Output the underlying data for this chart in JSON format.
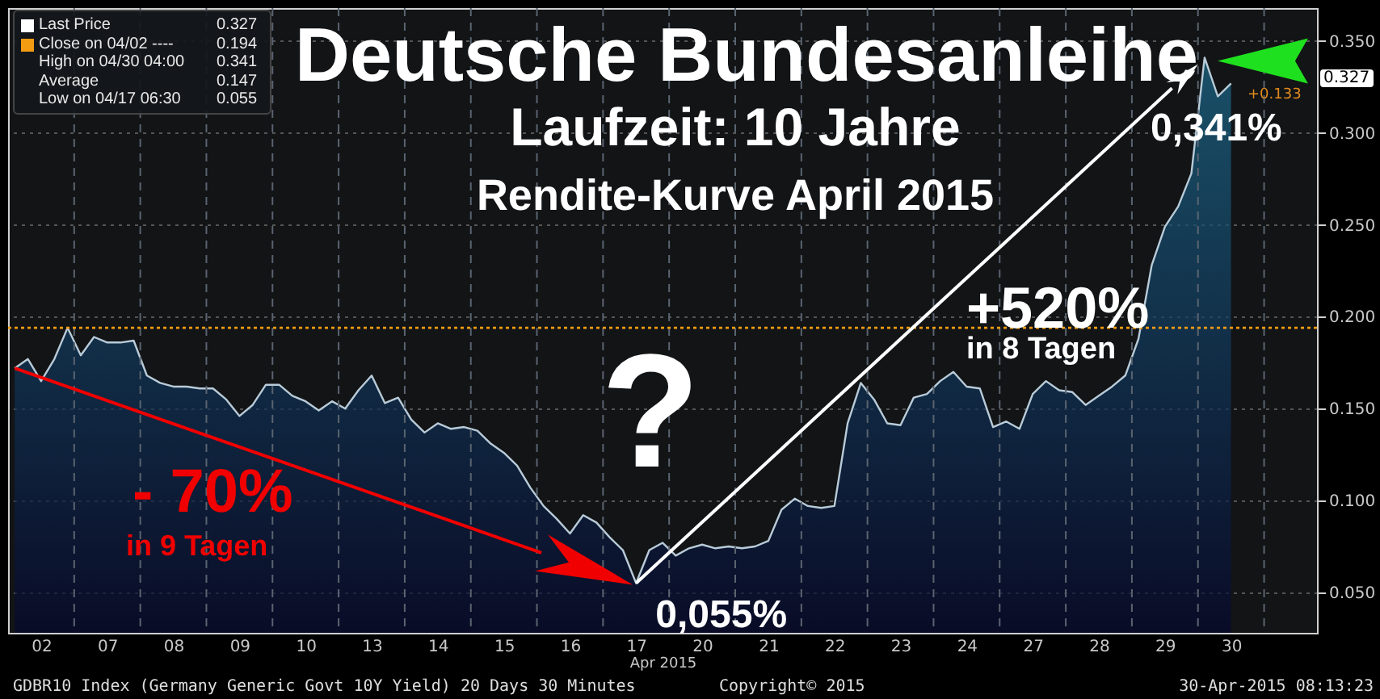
{
  "chart_data": {
    "type": "area",
    "title": "Deutsche Bundesanleihe",
    "subtitle": "Laufzeit: 10 Jahre",
    "xlabel": "Apr 2015",
    "categories": [
      null,
      null,
      "02",
      null,
      null,
      null,
      null,
      "07",
      null,
      null,
      null,
      null,
      "08",
      null,
      null,
      null,
      null,
      "09",
      null,
      null,
      null,
      null,
      "10",
      null,
      null,
      null,
      null,
      "13",
      null,
      null,
      null,
      null,
      "14",
      null,
      null,
      null,
      null,
      "15",
      null,
      null,
      null,
      null,
      "16",
      null,
      null,
      null,
      null,
      "17",
      null,
      null,
      null,
      null,
      "20",
      null,
      null,
      null,
      null,
      "21",
      null,
      null,
      null,
      null,
      "22",
      null,
      null,
      null,
      null,
      "23",
      null,
      null,
      null,
      null,
      "24",
      null,
      null,
      null,
      null,
      "27",
      null,
      null,
      null,
      null,
      "28",
      null,
      null,
      null,
      null,
      "29",
      null,
      null,
      null,
      null,
      "30",
      null,
      null,
      null,
      null,
      null,
      null
    ],
    "series": [
      {
        "color": "#1d6b8c",
        "values": [
          0.172,
          0.177,
          0.165,
          0.177,
          0.194,
          0.179,
          0.189,
          0.186,
          0.186,
          0.187,
          0.168,
          0.164,
          0.162,
          0.162,
          0.161,
          0.161,
          0.155,
          0.146,
          0.152,
          0.163,
          0.163,
          0.157,
          0.154,
          0.149,
          0.154,
          0.15,
          0.16,
          0.168,
          0.153,
          0.156,
          0.144,
          0.137,
          0.142,
          0.139,
          0.14,
          0.138,
          0.131,
          0.126,
          0.119,
          0.107,
          0.097,
          0.09,
          0.082,
          0.092,
          0.088,
          0.08,
          0.073,
          0.055,
          0.073,
          0.077,
          0.07,
          0.074,
          0.076,
          0.074,
          0.075,
          0.074,
          0.075,
          0.078,
          0.095,
          0.101,
          0.097,
          0.096,
          0.097,
          0.142,
          0.164,
          0.155,
          0.142,
          0.141,
          0.156,
          0.158,
          0.165,
          0.17,
          0.162,
          0.161,
          0.14,
          0.143,
          0.139,
          0.158,
          0.165,
          0.16,
          0.159,
          0.152,
          0.157,
          0.162,
          0.168,
          0.188,
          0.228,
          0.249,
          0.26,
          0.278,
          0.341,
          0.32,
          0.327,
          null,
          null,
          null,
          null,
          null,
          null
        ]
      }
    ],
    "ylim": [
      0.028,
      0.368
    ],
    "yticks": [
      {
        "value": 0.05,
        "label": "0.050"
      },
      {
        "value": 0.1,
        "label": "0.100"
      },
      {
        "value": 0.15,
        "label": "0.150"
      },
      {
        "value": 0.2,
        "label": "0.200"
      },
      {
        "value": 0.25,
        "label": "0.250"
      },
      {
        "value": 0.3,
        "label": "0.300"
      },
      {
        "value": 0.35,
        "label": "0.350"
      }
    ],
    "grid": true,
    "ref_lines": [
      {
        "axis": "y",
        "value": 0.194,
        "color": "#f39c12",
        "line_style": "dotted"
      }
    ],
    "annotations": [
      "Last Price",
      "0.327",
      "Close on 04/02 ----",
      "0.194",
      "High on 04/30 04:00",
      "0.341",
      "Average",
      "0.147",
      "Low on 04/17 06:30",
      "0.055",
      "Rendite-Kurve April 2015",
      "?",
      "- 70%",
      "in 9 Tagen",
      "+520%",
      "in 8 Tagen",
      "GDBR10 Index (Germany Generic Govt 10Y Yield) 20 Days 30 Minutes",
      "Copyright© 2015",
      "30-Apr-2015 08:13:23",
      "+0.133",
      "0.327",
      {
        "text": "0,055%",
        "x": "17",
        "y": 0.055
      },
      "0,341%"
    ]
  }
}
